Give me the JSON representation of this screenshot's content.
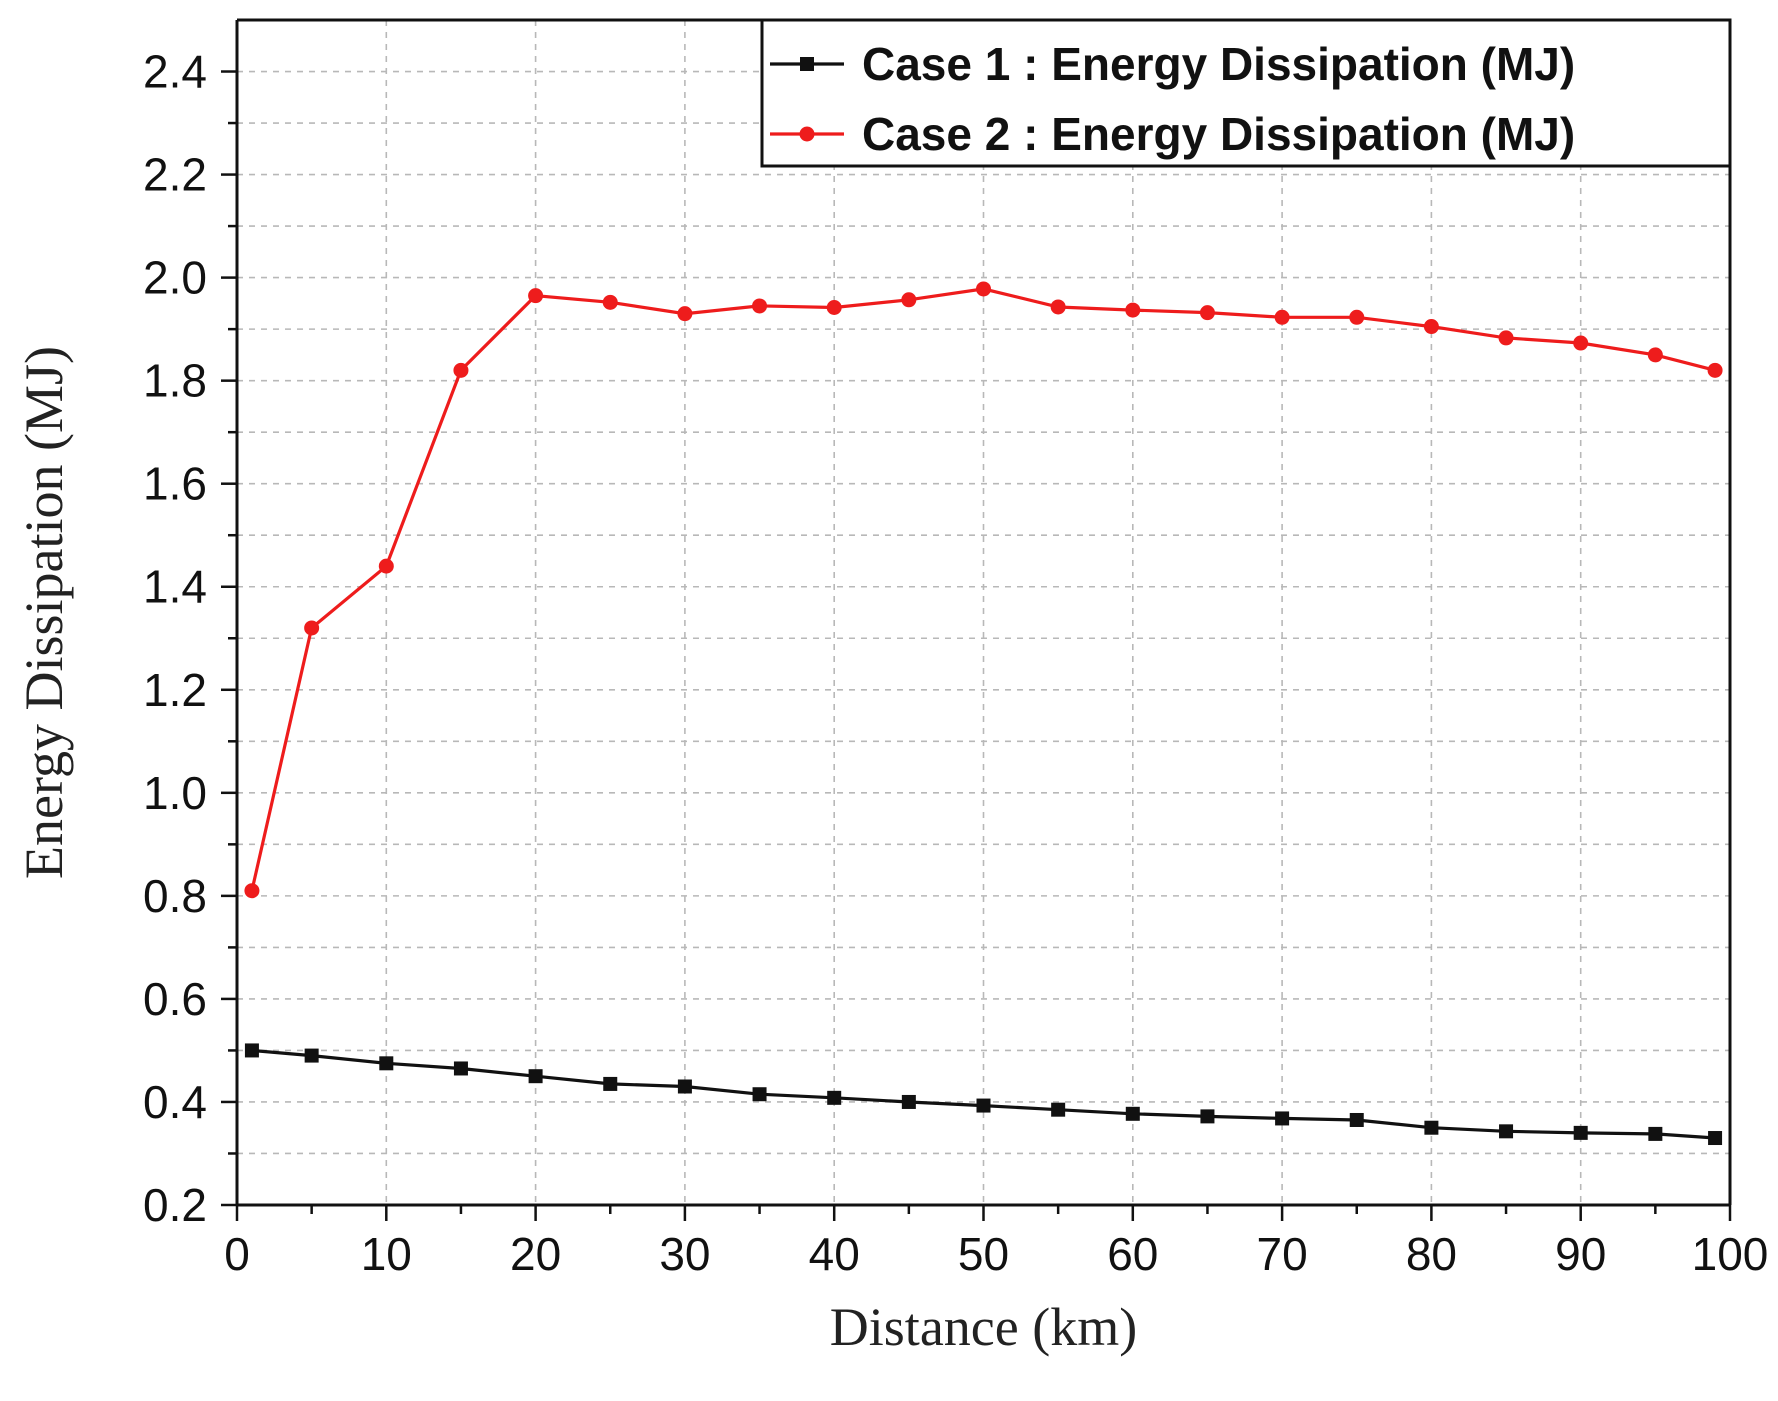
{
  "chart_data": {
    "type": "line",
    "title": "",
    "xlabel": "Distance (km)",
    "ylabel": "Energy Dissipation (MJ)",
    "xlim": [
      0,
      100
    ],
    "ylim": [
      0.2,
      2.5
    ],
    "xticks": [
      "0",
      "10",
      "20",
      "30",
      "40",
      "50",
      "60",
      "70",
      "80",
      "90",
      "100"
    ],
    "yticks": [
      "0.2",
      "0.4",
      "0.6",
      "0.8",
      "1.0",
      "1.2",
      "1.4",
      "1.6",
      "1.8",
      "2.0",
      "2.2",
      "2.4"
    ],
    "grid": true,
    "legend_position": "top-right",
    "x": [
      1,
      5,
      10,
      15,
      20,
      25,
      30,
      35,
      40,
      45,
      50,
      55,
      60,
      65,
      70,
      75,
      80,
      85,
      90,
      95,
      99
    ],
    "series": [
      {
        "name": "Case 1 : Energy Dissipation (MJ)",
        "color": "#111111",
        "marker": "square",
        "values": [
          0.5,
          0.49,
          0.475,
          0.465,
          0.45,
          0.435,
          0.43,
          0.415,
          0.408,
          0.4,
          0.393,
          0.385,
          0.377,
          0.372,
          0.368,
          0.365,
          0.35,
          0.343,
          0.34,
          0.338,
          0.33
        ]
      },
      {
        "name": "Case 2 : Energy Dissipation (MJ)",
        "color": "#ee1c1c",
        "marker": "circle",
        "values": [
          0.81,
          1.32,
          1.44,
          1.82,
          1.965,
          1.952,
          1.93,
          1.945,
          1.942,
          1.957,
          1.978,
          1.943,
          1.937,
          1.932,
          1.923,
          1.923,
          1.905,
          1.883,
          1.873,
          1.85,
          1.82
        ]
      }
    ]
  }
}
